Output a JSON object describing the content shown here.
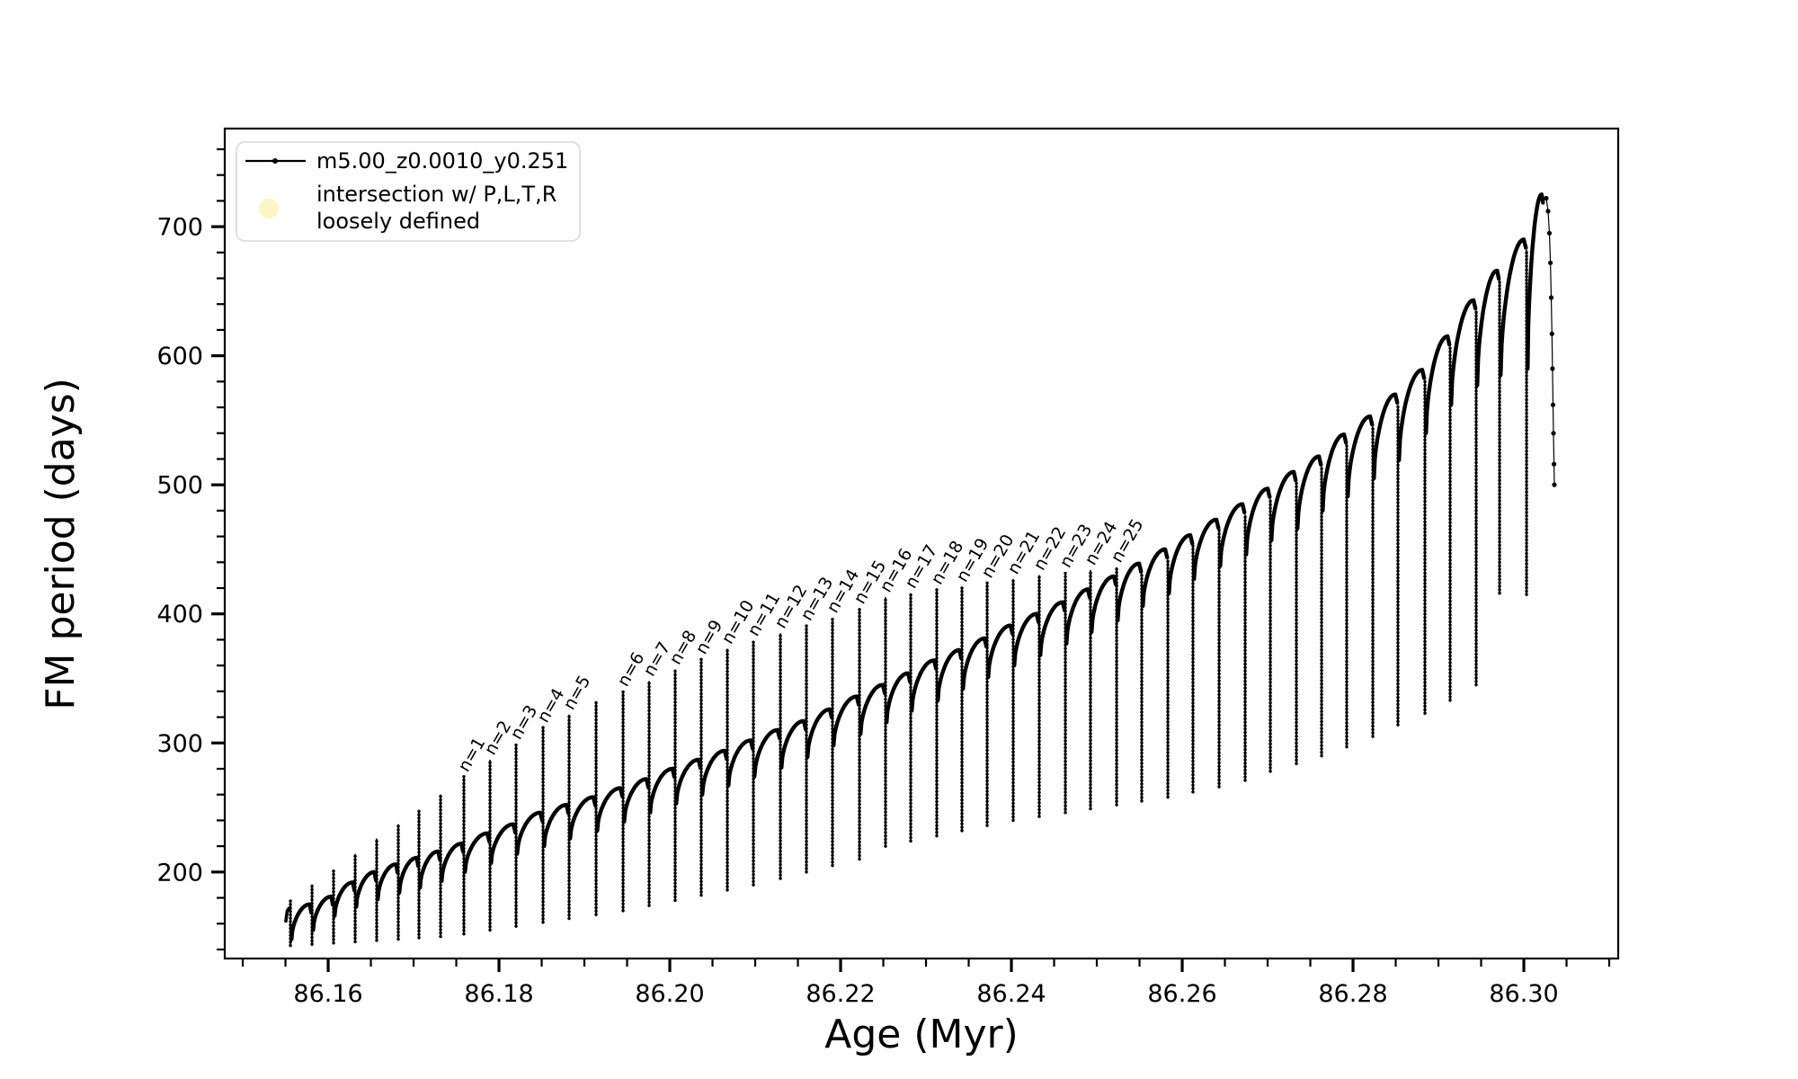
{
  "figure": {
    "background": "#ffffff",
    "axes_color": "#000000",
    "curve_color": "#000000",
    "legend_border_color": "#d8d8d8",
    "intersection_marker_color": "#fbf6c4"
  },
  "legend": {
    "items": [
      {
        "label": "m5.00_z0.0010_y0.251",
        "marker": "line-with-dot-marker",
        "color": "#000000"
      },
      {
        "label_line1": "intersection w/ P,L,T,R",
        "label_line2": "loosely defined",
        "marker": "circle-marker",
        "color": "#fbf6c4"
      }
    ]
  },
  "chart_data": {
    "type": "line",
    "series_name": "m5.00_z0.0010_y0.251",
    "xlabel": "Age (Myr)",
    "ylabel": "FM period (days)",
    "xlim": [
      86.14789,
      86.31105
    ],
    "ylim": [
      133,
      776
    ],
    "x_major_ticks": [
      86.16,
      86.18,
      86.2,
      86.22,
      86.24,
      86.26,
      86.28,
      86.3
    ],
    "x_minor_step": 0.005,
    "y_major_ticks": [
      200,
      300,
      400,
      500,
      600,
      700
    ],
    "y_minor_step": 20,
    "grid": false,
    "legend_position": "upper-left",
    "annotation_rotation_deg": 60,
    "cycles_format": [
      "t_start",
      "t_end",
      "arch_base_days",
      "arch_peak_days",
      "dip_min_at_end_days",
      "spike_top_at_end_days",
      "label_at_end"
    ],
    "lead_in": [
      [
        86.15505,
        162
      ],
      [
        86.15521,
        170
      ],
      [
        86.15542,
        172
      ]
    ],
    "first_boundary": {
      "age": 86.15558,
      "dip": 143,
      "line_top": 178
    },
    "cycles": [
      [
        86.15558,
        86.15811,
        148,
        175,
        144,
        190,
        null
      ],
      [
        86.15811,
        86.16063,
        155,
        181,
        145,
        202,
        null
      ],
      [
        86.16063,
        86.16316,
        166,
        192,
        146,
        214,
        null
      ],
      [
        86.16316,
        86.16568,
        173,
        200,
        147,
        226,
        null
      ],
      [
        86.16568,
        86.16821,
        179,
        206,
        148,
        237,
        null
      ],
      [
        86.16821,
        86.17063,
        184,
        211,
        149,
        248,
        null
      ],
      [
        86.17063,
        86.17316,
        188,
        216,
        150,
        260,
        null
      ],
      [
        86.17316,
        86.17589,
        193,
        222,
        152,
        274,
        "n=1"
      ],
      [
        86.17589,
        86.17895,
        200,
        230,
        155,
        287,
        "n=2"
      ],
      [
        86.17895,
        86.182,
        207,
        237,
        158,
        299,
        "n=3"
      ],
      [
        86.182,
        86.18516,
        214,
        246,
        161,
        312,
        "n=4"
      ],
      [
        86.18516,
        86.18821,
        220,
        252,
        164,
        322,
        "n=5"
      ],
      [
        86.18821,
        86.19137,
        226,
        258,
        167,
        332,
        null
      ],
      [
        86.19137,
        86.19453,
        232,
        265,
        170,
        340,
        "n=6"
      ],
      [
        86.19453,
        86.19758,
        239,
        272,
        174,
        348,
        "n=7"
      ],
      [
        86.19758,
        86.20063,
        246,
        280,
        178,
        357,
        "n=8"
      ],
      [
        86.20063,
        86.20368,
        253,
        287,
        182,
        365,
        "n=9"
      ],
      [
        86.20368,
        86.20674,
        260,
        294,
        186,
        373,
        "n=10"
      ],
      [
        86.20674,
        86.20979,
        267,
        302,
        190,
        379,
        "n=11"
      ],
      [
        86.20979,
        86.21295,
        274,
        310,
        195,
        385,
        "n=12"
      ],
      [
        86.21295,
        86.216,
        281,
        317,
        200,
        391,
        "n=13"
      ],
      [
        86.216,
        86.21905,
        289,
        326,
        205,
        397,
        "n=14"
      ],
      [
        86.21905,
        86.22221,
        298,
        336,
        210,
        404,
        "n=15"
      ],
      [
        86.22221,
        86.22526,
        307,
        345,
        220,
        413,
        "n=16"
      ],
      [
        86.22526,
        86.22821,
        316,
        354,
        224,
        416,
        "n=17"
      ],
      [
        86.22821,
        86.23126,
        325,
        364,
        228,
        419,
        "n=18"
      ],
      [
        86.23126,
        86.23421,
        333,
        372,
        232,
        421,
        "n=19"
      ],
      [
        86.23421,
        86.23716,
        342,
        381,
        236,
        424,
        "n=20"
      ],
      [
        86.23716,
        86.24021,
        351,
        391,
        240,
        427,
        "n=21"
      ],
      [
        86.24021,
        86.24326,
        360,
        400,
        243,
        430,
        "n=22"
      ],
      [
        86.24326,
        86.24632,
        368,
        409,
        246,
        432,
        "n=23"
      ],
      [
        86.24632,
        86.24926,
        377,
        419,
        249,
        434,
        "n=24"
      ],
      [
        86.24926,
        86.25232,
        386,
        429,
        252,
        436,
        "n=25"
      ],
      [
        86.25232,
        86.25526,
        395,
        439,
        255,
        409,
        null
      ],
      [
        86.25526,
        86.25832,
        406,
        450,
        258,
        420,
        null
      ],
      [
        86.25832,
        86.26126,
        416,
        461,
        262,
        431,
        null
      ],
      [
        86.26126,
        86.26432,
        427,
        473,
        266,
        443,
        null
      ],
      [
        86.26432,
        86.26737,
        437,
        485,
        271,
        455,
        null
      ],
      [
        86.26737,
        86.27032,
        446,
        497,
        278,
        467,
        null
      ],
      [
        86.27032,
        86.27337,
        457,
        510,
        284,
        480,
        null
      ],
      [
        86.27337,
        86.27632,
        466,
        522,
        290,
        492,
        null
      ],
      [
        86.27632,
        86.27926,
        480,
        539,
        297,
        509,
        null
      ],
      [
        86.27926,
        86.28232,
        491,
        553,
        305,
        523,
        null
      ],
      [
        86.28232,
        86.28526,
        505,
        570,
        314,
        540,
        null
      ],
      [
        86.28526,
        86.28842,
        519,
        589,
        323,
        559,
        null
      ],
      [
        86.28842,
        86.29137,
        540,
        615,
        333,
        585,
        null
      ],
      [
        86.29137,
        86.29442,
        562,
        643,
        345,
        613,
        null
      ],
      [
        86.29442,
        86.29716,
        577,
        666,
        416,
        636,
        null
      ],
      [
        86.29716,
        86.30032,
        585,
        690,
        415,
        660,
        null
      ],
      [
        86.30032,
        86.30232,
        590,
        725,
        null,
        null,
        null
      ]
    ],
    "tail": [
      [
        86.30263,
        722
      ],
      [
        86.30284,
        712
      ],
      [
        86.303,
        695
      ],
      [
        86.30311,
        672
      ],
      [
        86.30321,
        645
      ],
      [
        86.30329,
        617
      ],
      [
        86.30335,
        590
      ],
      [
        86.30342,
        562
      ],
      [
        86.30347,
        540
      ],
      [
        86.30353,
        516
      ],
      [
        86.30358,
        500
      ]
    ]
  }
}
